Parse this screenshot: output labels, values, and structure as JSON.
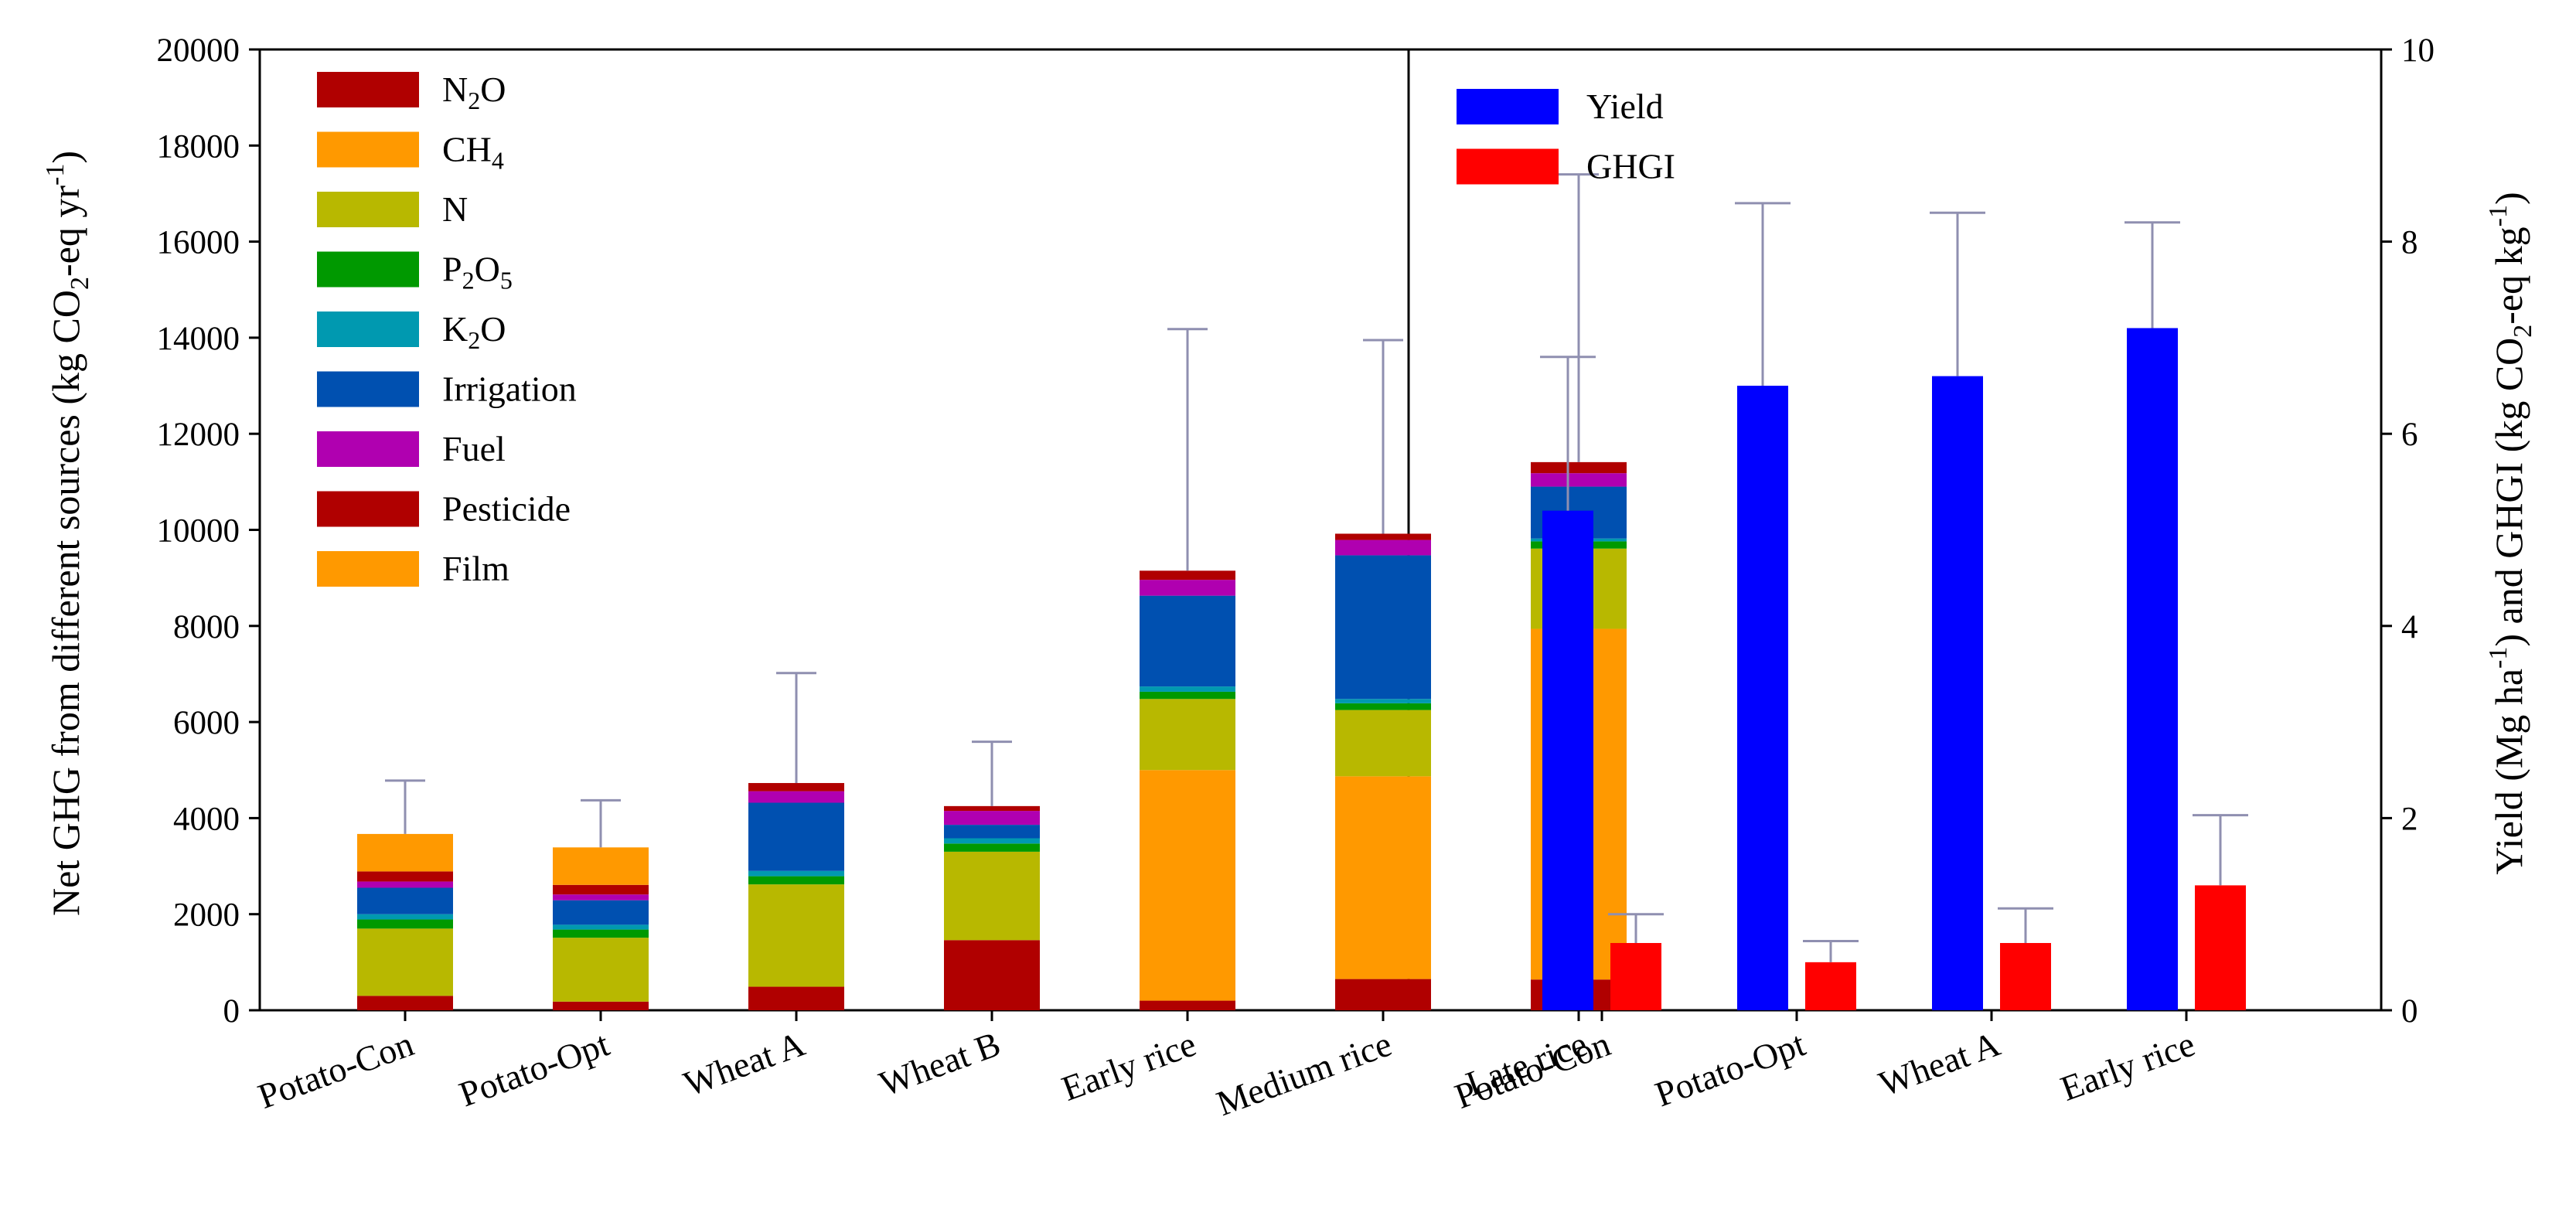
{
  "legend_left": [
    {
      "key": "n2o",
      "label": "N",
      "sub": "2",
      "post": "O",
      "color": "#b00000"
    },
    {
      "key": "ch4",
      "label": "CH",
      "sub": "4",
      "post": "",
      "color": "#ff9900"
    },
    {
      "key": "n",
      "label": "N",
      "sub": "",
      "post": "",
      "color": "#b8b800"
    },
    {
      "key": "p2o5",
      "label": "P",
      "sub": "2",
      "post": "O",
      "sub2": "5",
      "color": "#009900"
    },
    {
      "key": "k2o",
      "label": "K",
      "sub": "2",
      "post": "O",
      "color": "#0099b0"
    },
    {
      "key": "irrigation",
      "label": "Irrigation",
      "sub": "",
      "post": "",
      "color": "#0050b0"
    },
    {
      "key": "fuel",
      "label": "Fuel",
      "sub": "",
      "post": "",
      "color": "#b000b0"
    },
    {
      "key": "pesticide",
      "label": "Pesticide",
      "sub": "",
      "post": "",
      "color": "#b00000"
    },
    {
      "key": "film",
      "label": "Film",
      "sub": "",
      "post": "",
      "color": "#ff9900"
    }
  ],
  "legend_right": [
    {
      "label": "Yield",
      "color": "#0000ff"
    },
    {
      "label": "GHGI",
      "color": "#ff0000"
    }
  ],
  "axis_left_label": {
    "pre": "Net GHG from different sources (kg CO",
    "sub": "2",
    "mid": "-eq yr",
    "sup": "-1",
    "post": ")"
  },
  "axis_right_label": {
    "pre": "Yield (Mg ha",
    "sup": "-1",
    "mid": ") and GHGI (kg CO",
    "sub": "2",
    "mid2": "-eq kg",
    "sup2": "-1",
    "post": ")"
  },
  "chart_data": [
    {
      "type": "bar",
      "stacked": true,
      "categories": [
        "Potato-Con",
        "Potato-Opt",
        "Wheat A",
        "Wheat B",
        "Early rice",
        "Medium rice",
        "Late rice"
      ],
      "ylim": [
        0,
        20000
      ],
      "yticks": [
        0,
        2000,
        4000,
        6000,
        8000,
        10000,
        12000,
        14000,
        16000,
        18000,
        20000
      ],
      "series": [
        {
          "name": "N2O",
          "values": [
            300,
            180,
            490,
            1460,
            200,
            650,
            640
          ]
        },
        {
          "name": "CH4",
          "values": [
            0,
            0,
            0,
            0,
            4800,
            4220,
            7300
          ]
        },
        {
          "name": "N",
          "values": [
            1400,
            1330,
            2130,
            1840,
            1480,
            1380,
            1670
          ]
        },
        {
          "name": "P2O5",
          "values": [
            190,
            170,
            170,
            170,
            150,
            140,
            150
          ]
        },
        {
          "name": "K2O",
          "values": [
            110,
            100,
            110,
            110,
            110,
            90,
            60
          ]
        },
        {
          "name": "Irrigation",
          "values": [
            550,
            510,
            1420,
            280,
            1890,
            2990,
            1080
          ]
        },
        {
          "name": "Fuel",
          "values": [
            130,
            120,
            240,
            290,
            330,
            320,
            280
          ]
        },
        {
          "name": "Pesticide",
          "values": [
            210,
            200,
            170,
            100,
            190,
            130,
            230
          ]
        },
        {
          "name": "Film",
          "values": [
            780,
            780,
            0,
            0,
            0,
            0,
            0
          ]
        }
      ],
      "totals": [
        3670,
        3390,
        4730,
        4250,
        9150,
        9920,
        11410
      ],
      "error_top": [
        4780,
        4370,
        7020,
        5590,
        14180,
        13950,
        17400
      ]
    },
    {
      "type": "bar",
      "categories": [
        "Potato-Con",
        "Potato-Opt",
        "Wheat A",
        "Early rice"
      ],
      "ylim": [
        0,
        10
      ],
      "yticks": [
        0,
        2,
        4,
        6,
        8,
        10
      ],
      "series": [
        {
          "name": "Yield",
          "values": [
            5.2,
            6.5,
            6.6,
            7.1
          ],
          "error_top": [
            6.8,
            8.4,
            8.3,
            8.2
          ]
        },
        {
          "name": "GHGI",
          "values": [
            0.7,
            0.5,
            0.7,
            1.3
          ],
          "error_top": [
            1.0,
            0.72,
            1.06,
            2.03
          ]
        }
      ]
    }
  ]
}
